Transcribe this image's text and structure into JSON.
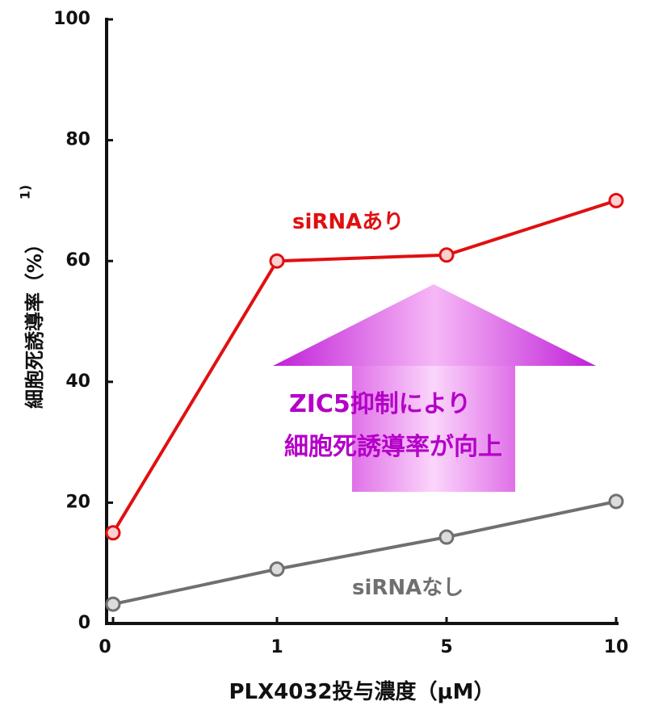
{
  "chart_data": {
    "type": "line",
    "x_categories": [
      "0",
      "1",
      "5",
      "10"
    ],
    "y_ticks": [
      "0",
      "20",
      "40",
      "60",
      "80",
      "100"
    ],
    "ylim": [
      0,
      100
    ],
    "xlabel": "PLX4032投与濃度（μM）",
    "ylabel": "細胞死誘導率（%）",
    "ylabel_sup": "1)",
    "series": [
      {
        "name": "siRNAあり",
        "values": [
          15,
          60,
          61,
          70
        ],
        "color": "#e01010"
      },
      {
        "name": "siRNAなし",
        "values": [
          3.2,
          9,
          14.3,
          20.2
        ],
        "color": "#707070"
      }
    ],
    "annotation": {
      "lines": [
        "ZIC5抑制により",
        "細胞死誘導率が向上"
      ],
      "arrow_color": "#b400c8",
      "text_color": "#b400c8"
    },
    "grid": false,
    "legend": "inline labels next to lines"
  }
}
